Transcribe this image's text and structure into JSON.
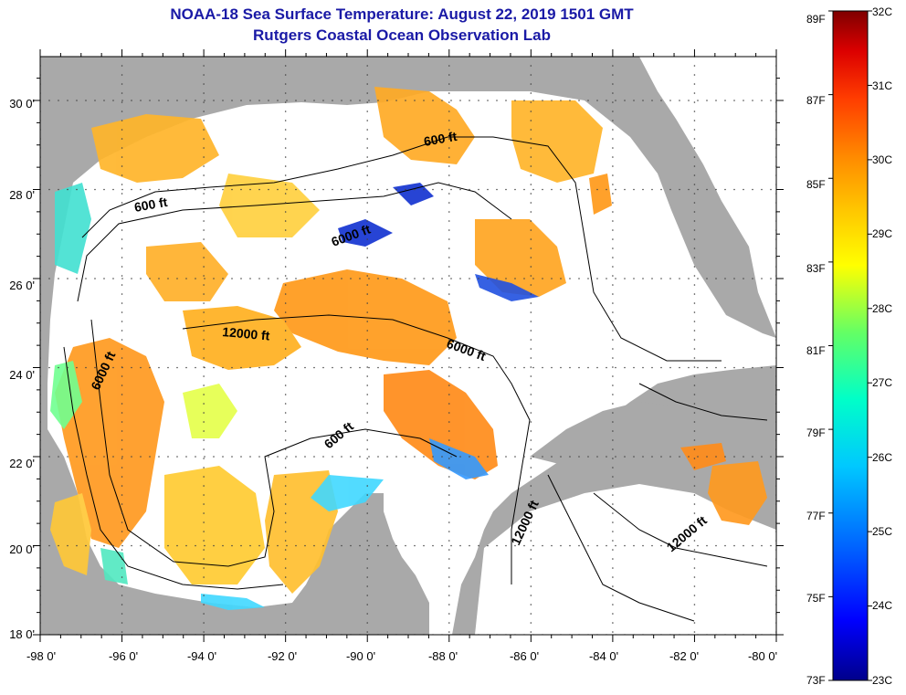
{
  "title": {
    "line1": "NOAA-18 Sea Surface Temperature:  August 22, 2019 1501 GMT",
    "line2": "Rutgers Coastal Ocean Observation Lab"
  },
  "map": {
    "latitude_labels": [
      "30 0'",
      "28 0'",
      "26 0'",
      "24 0'",
      "22 0'",
      "20 0'",
      "18 0'"
    ],
    "longitude_labels": [
      "-98 0'",
      "-96 0'",
      "-94 0'",
      "-92 0'",
      "-90 0'",
      "-88 0'",
      "-86 0'",
      "-84 0'",
      "-82 0'",
      "-80 0'"
    ],
    "contour_labels": [
      "600 ft",
      "600 ft",
      "600 ft",
      "6000 ft",
      "6000 ft",
      "6000 ft",
      "12000 ft",
      "12000 ft",
      "12000 ft"
    ],
    "land_color": "#a9a9a9",
    "cloud_color": "#ffffff"
  },
  "colorbar": {
    "fahrenheit_labels": [
      "89F",
      "87F",
      "85F",
      "83F",
      "81F",
      "79F",
      "77F",
      "75F",
      "73F"
    ],
    "celsius_labels": [
      "32C",
      "31C",
      "30C",
      "29C",
      "28C",
      "27C",
      "26C",
      "25C",
      "24C",
      "23C"
    ],
    "min_c": 23,
    "max_c": 32,
    "gradient_colors": [
      "#00008b",
      "#0000ff",
      "#0064ff",
      "#00c8ff",
      "#00ffc8",
      "#64ff64",
      "#ffff00",
      "#ffc800",
      "#ff8c00",
      "#ff3c00",
      "#dc0000",
      "#7f0000"
    ]
  }
}
